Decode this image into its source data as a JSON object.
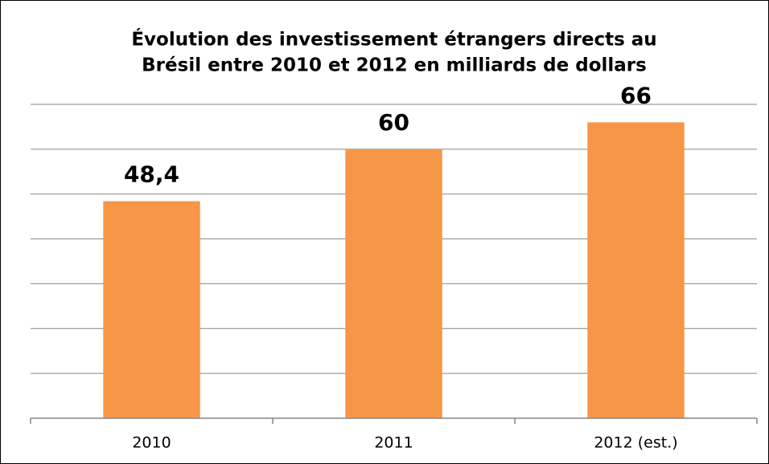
{
  "chart_data": {
    "type": "bar",
    "title": [
      "Évolution des investissement étrangers directs au",
      "Brésil entre 2010 et 2012 en milliards de dollars"
    ],
    "categories": [
      "2010",
      "2011",
      "2012 (est.)"
    ],
    "values": [
      48.4,
      60,
      66
    ],
    "value_labels": [
      "48,4",
      "60",
      "66"
    ],
    "color": "#f79646",
    "ylim": [
      0,
      70
    ],
    "yticks": [
      0,
      10,
      20,
      30,
      40,
      50,
      60,
      70
    ],
    "grid": true
  }
}
